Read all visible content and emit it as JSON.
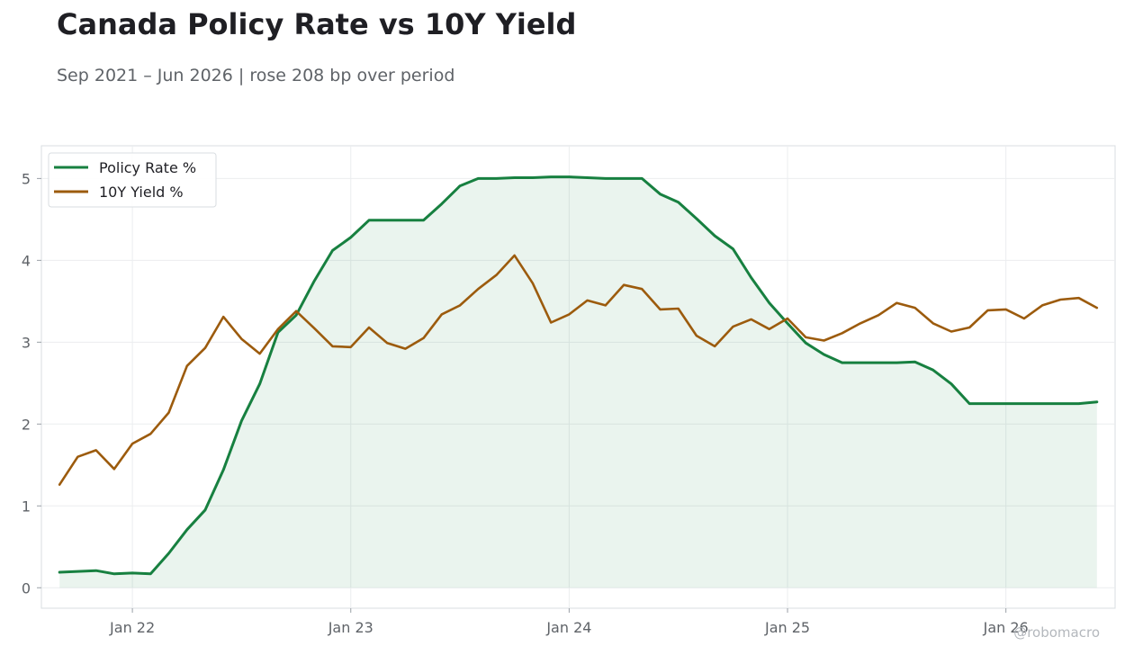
{
  "title": "Canada Policy Rate vs 10Y Yield",
  "subtitle": "Sep 2021 – Jun 2026 | rose 208 bp over period",
  "watermark": "@robomacro",
  "chart_data": {
    "type": "line",
    "title": "Canada Policy Rate vs 10Y Yield",
    "subtitle": "Sep 2021 – Jun 2026 | rose 208 bp over period",
    "xlabel": "",
    "ylabel": "",
    "x_start": "2021-09",
    "x_range": [
      "2021-08",
      "2026-07"
    ],
    "ylim": [
      -0.25,
      5.4
    ],
    "yticks": [
      0,
      1,
      2,
      3,
      4,
      5
    ],
    "xticks": [
      {
        "label": "Jan 22",
        "date": "2022-01"
      },
      {
        "label": "Jan 23",
        "date": "2023-01"
      },
      {
        "label": "Jan 24",
        "date": "2024-01"
      },
      {
        "label": "Jan 25",
        "date": "2025-01"
      },
      {
        "label": "Jan 26",
        "date": "2026-01"
      }
    ],
    "grid": true,
    "legend": "top-left",
    "series": [
      {
        "name": "Policy Rate %",
        "color": "#178040",
        "fill": true,
        "fill_color": "#178040",
        "values": [
          0.19,
          0.2,
          0.21,
          0.17,
          0.18,
          0.17,
          0.42,
          0.71,
          0.95,
          1.44,
          2.04,
          2.49,
          3.12,
          3.33,
          3.75,
          4.12,
          4.28,
          4.49,
          4.49,
          4.49,
          4.49,
          4.69,
          4.91,
          5.0,
          5.0,
          5.01,
          5.01,
          5.02,
          5.02,
          5.01,
          5.0,
          5.0,
          5.0,
          4.81,
          4.71,
          4.51,
          4.3,
          4.14,
          3.79,
          3.48,
          3.23,
          2.99,
          2.85,
          2.75,
          2.75,
          2.75,
          2.75,
          2.76,
          2.66,
          2.49,
          2.25,
          2.25,
          2.25,
          2.25,
          2.25,
          2.25,
          2.25,
          2.27
        ]
      },
      {
        "name": "10Y Yield %",
        "color": "#9c5b0d",
        "fill": false,
        "values": [
          1.26,
          1.6,
          1.68,
          1.45,
          1.76,
          1.88,
          2.14,
          2.71,
          2.93,
          3.31,
          3.04,
          2.86,
          3.16,
          3.38,
          3.17,
          2.95,
          2.94,
          3.18,
          2.99,
          2.92,
          3.05,
          3.34,
          3.45,
          3.65,
          3.82,
          4.06,
          3.72,
          3.24,
          3.34,
          3.51,
          3.45,
          3.7,
          3.65,
          3.4,
          3.41,
          3.08,
          2.95,
          3.19,
          3.28,
          3.16,
          3.29,
          3.06,
          3.02,
          3.11,
          3.23,
          3.33,
          3.48,
          3.42,
          3.23,
          3.13,
          3.18,
          3.39,
          3.4,
          3.29,
          3.45,
          3.52,
          3.54,
          3.42
        ]
      }
    ]
  }
}
